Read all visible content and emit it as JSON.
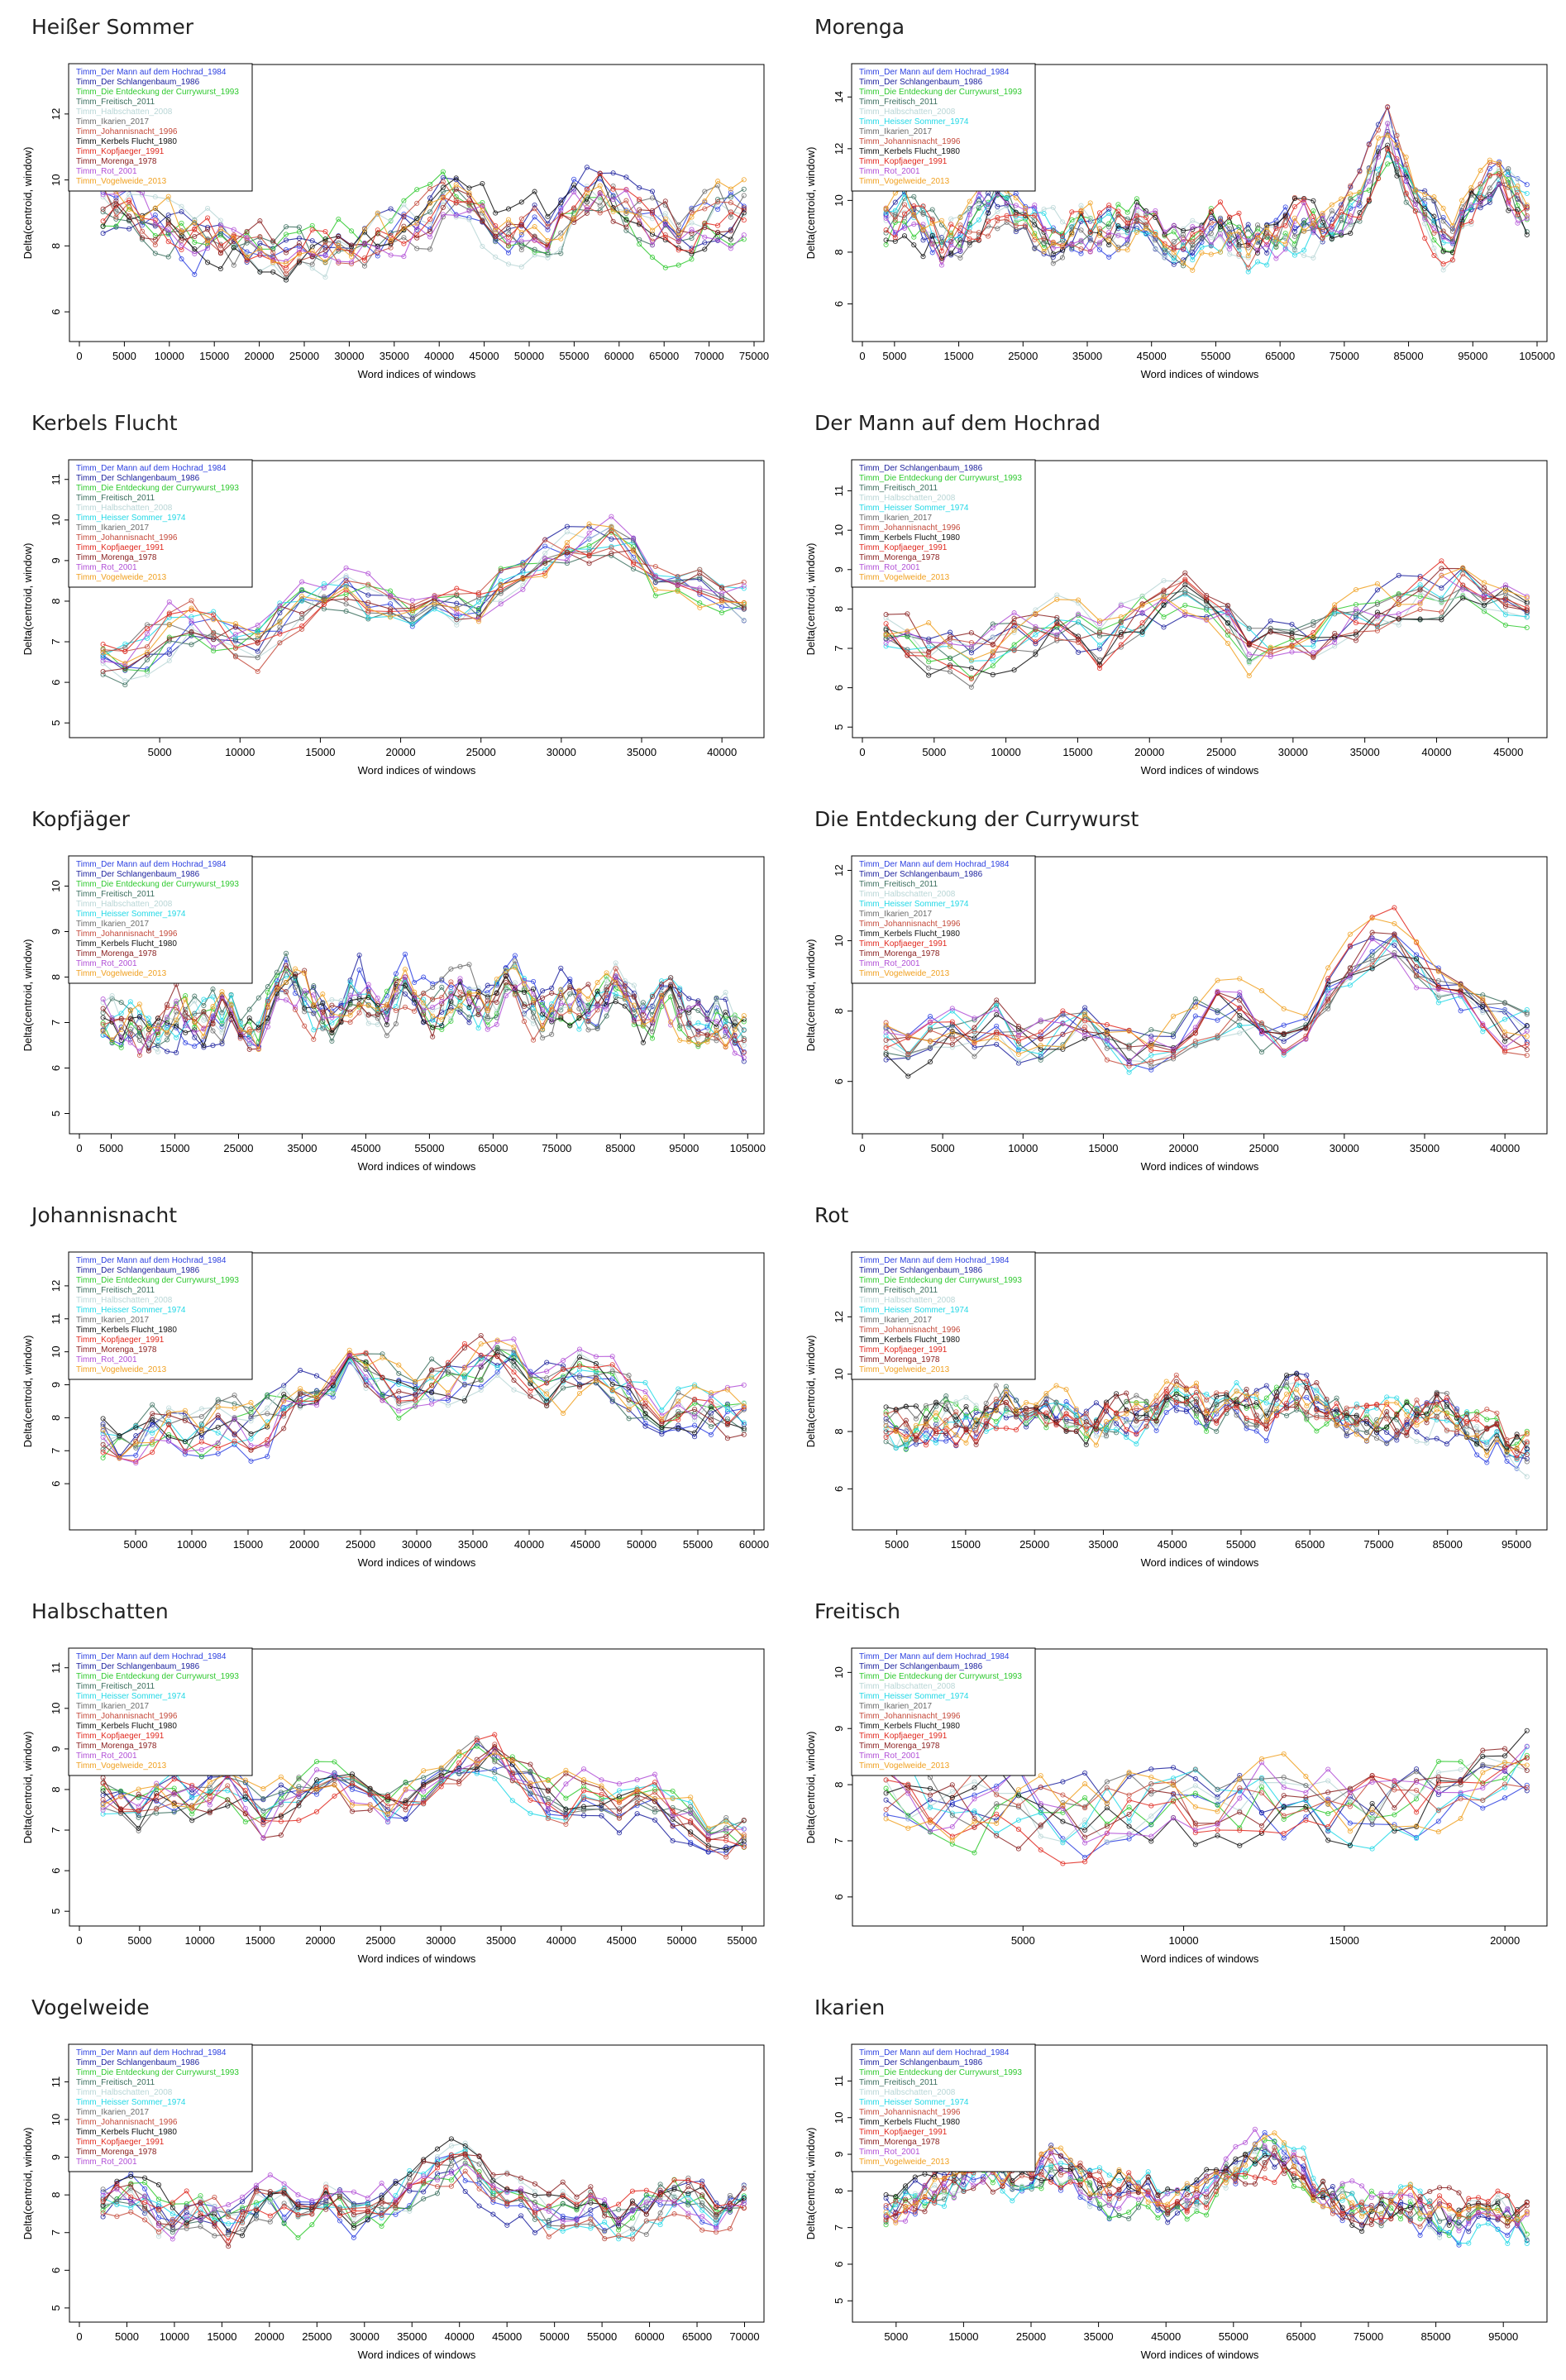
{
  "palette": {
    "Timm_Der Mann auf dem Hochrad_1984": "#2b3fe0",
    "Timm_Der Schlangenbaum_1986": "#1a1f9c",
    "Timm_Die Entdeckung der Currywurst_1993": "#2ec92e",
    "Timm_Freitisch_2011": "#3b6e5e",
    "Timm_Halbschatten_2008": "#b9d6d6",
    "Timm_Heisser Sommer_1974": "#22d8e6",
    "Timm_Ikarien_2017": "#6a6a6a",
    "Timm_Johannisnacht_1996": "#c4493a",
    "Timm_Kerbels Flucht_1980": "#111111",
    "Timm_Kopfjaeger_1991": "#e0281e",
    "Timm_Morenga_1978": "#8a2020",
    "Timm_Rot_2001": "#b14fd6",
    "Timm_Vogelweide_2013": "#f0a020"
  },
  "shared": {
    "ylabel": "Delta(centroid, window)",
    "xlabel": "Word indices of windows"
  },
  "chart_data": [
    {
      "type": "line",
      "title": "Heißer Sommer",
      "xmax": 75000,
      "ylim": [
        5.3,
        13.3
      ],
      "xticks": [
        0,
        5000,
        10000,
        15000,
        20000,
        25000,
        30000,
        35000,
        40000,
        45000,
        50000,
        55000,
        60000,
        65000,
        70000,
        75000
      ],
      "yticks": [
        6,
        8,
        10,
        12
      ],
      "series": [
        "Timm_Der Mann auf dem Hochrad_1984",
        "Timm_Der Schlangenbaum_1986",
        "Timm_Die Entdeckung der Currywurst_1993",
        "Timm_Freitisch_2011",
        "Timm_Halbschatten_2008",
        "Timm_Ikarien_2017",
        "Timm_Johannisnacht_1996",
        "Timm_Kerbels Flucht_1980",
        "Timm_Kopfjaeger_1991",
        "Timm_Morenga_1978",
        "Timm_Rot_2001",
        "Timm_Vogelweide_2013"
      ],
      "mean": [
        9.5,
        9.4,
        9.0,
        8.6,
        8.4,
        8.3,
        8.1,
        8.0,
        8.4,
        8.6,
        8.9,
        9.2,
        9.6,
        9.2,
        8.8,
        8.9,
        9.6,
        10.1,
        9.5,
        8.9,
        9.1,
        9.4,
        9.2
      ],
      "amp": 1.4
    },
    {
      "type": "line",
      "title": "Morenga",
      "xmax": 105000,
      "ylim": [
        4.8,
        15.0
      ],
      "xticks": [
        0,
        5000,
        15000,
        25000,
        35000,
        45000,
        55000,
        65000,
        75000,
        85000,
        95000,
        105000
      ],
      "yticks": [
        6,
        8,
        10,
        12,
        14
      ],
      "series": [
        "Timm_Der Mann auf dem Hochrad_1984",
        "Timm_Der Schlangenbaum_1986",
        "Timm_Die Entdeckung der Currywurst_1993",
        "Timm_Freitisch_2011",
        "Timm_Halbschatten_2008",
        "Timm_Heisser Sommer_1974",
        "Timm_Ikarien_2017",
        "Timm_Johannisnacht_1996",
        "Timm_Kerbels Flucht_1980",
        "Timm_Kopfjaeger_1991",
        "Timm_Rot_2001",
        "Timm_Vogelweide_2013"
      ],
      "mean": [
        9.5,
        9.8,
        8.6,
        9.4,
        10.2,
        9.6,
        8.8,
        9.4,
        9.1,
        9.8,
        9.0,
        8.7,
        9.3,
        8.6,
        8.9,
        9.5,
        9.2,
        10.6,
        13.0,
        10.2,
        8.8,
        10.2,
        11.2,
        9.8
      ],
      "amp": 1.6
    },
    {
      "type": "line",
      "title": "Kerbels Flucht",
      "xmax": 42000,
      "ylim": [
        4.8,
        11.3
      ],
      "xticks": [
        5000,
        10000,
        15000,
        20000,
        25000,
        30000,
        35000,
        40000
      ],
      "yticks": [
        5,
        6,
        7,
        8,
        9,
        10,
        11
      ],
      "series": [
        "Timm_Der Mann auf dem Hochrad_1984",
        "Timm_Der Schlangenbaum_1986",
        "Timm_Die Entdeckung der Currywurst_1993",
        "Timm_Freitisch_2011",
        "Timm_Halbschatten_2008",
        "Timm_Heisser Sommer_1974",
        "Timm_Ikarien_2017",
        "Timm_Johannisnacht_1996",
        "Timm_Kopfjaeger_1991",
        "Timm_Morenga_1978",
        "Timm_Rot_2001",
        "Timm_Vogelweide_2013"
      ],
      "mean": [
        6.8,
        6.6,
        7.4,
        7.6,
        7.2,
        7.0,
        7.8,
        8.1,
        8.4,
        8.0,
        7.6,
        8.2,
        7.8,
        8.6,
        9.1,
        9.4,
        9.6,
        9.9,
        8.8,
        8.5,
        8.4,
        8.2
      ],
      "amp": 1.0
    },
    {
      "type": "line",
      "title": "Der Mann auf dem Hochrad",
      "xmax": 47000,
      "ylim": [
        4.9,
        11.6
      ],
      "xticks": [
        0,
        5000,
        10000,
        15000,
        20000,
        25000,
        30000,
        35000,
        40000,
        45000
      ],
      "yticks": [
        5,
        6,
        7,
        8,
        9,
        10,
        11
      ],
      "series": [
        "Timm_Der Schlangenbaum_1986",
        "Timm_Die Entdeckung der Currywurst_1993",
        "Timm_Freitisch_2011",
        "Timm_Halbschatten_2008",
        "Timm_Heisser Sommer_1974",
        "Timm_Ikarien_2017",
        "Timm_Johannisnacht_1996",
        "Timm_Kerbels Flucht_1980",
        "Timm_Kopfjaeger_1991",
        "Timm_Morenga_1978",
        "Timm_Rot_2001",
        "Timm_Vogelweide_2013"
      ],
      "mean": [
        7.6,
        7.2,
        7.0,
        6.8,
        7.4,
        7.6,
        7.8,
        7.2,
        7.9,
        8.1,
        8.4,
        8.2,
        7.2,
        7.6,
        7.4,
        7.9,
        8.1,
        8.3,
        8.6,
        8.9,
        8.6,
        8.4
      ],
      "amp": 1.1
    },
    {
      "type": "line",
      "title": "Kopfjäger",
      "xmax": 106000,
      "ylim": [
        4.7,
        10.5
      ],
      "xticks": [
        0,
        5000,
        15000,
        25000,
        35000,
        45000,
        55000,
        65000,
        75000,
        85000,
        95000,
        105000
      ],
      "yticks": [
        5,
        6,
        7,
        8,
        9,
        10
      ],
      "series": [
        "Timm_Der Mann auf dem Hochrad_1984",
        "Timm_Der Schlangenbaum_1986",
        "Timm_Die Entdeckung der Currywurst_1993",
        "Timm_Freitisch_2011",
        "Timm_Halbschatten_2008",
        "Timm_Heisser Sommer_1974",
        "Timm_Ikarien_2017",
        "Timm_Johannisnacht_1996",
        "Timm_Kerbels Flucht_1980",
        "Timm_Morenga_1978",
        "Timm_Rot_2001",
        "Timm_Vogelweide_2013"
      ],
      "mean": [
        7.2,
        7.0,
        6.8,
        7.3,
        7.1,
        7.4,
        6.9,
        8.3,
        7.6,
        7.1,
        7.9,
        7.4,
        8.1,
        7.3,
        7.8,
        7.5,
        8.0,
        7.2,
        7.7,
        7.4,
        8.0,
        7.2,
        7.4,
        6.9,
        7.3,
        6.8
      ],
      "amp": 1.0
    },
    {
      "type": "line",
      "title": "Die Entdeckung der Currywurst",
      "xmax": 42000,
      "ylim": [
        4.7,
        12.2
      ],
      "xticks": [
        0,
        5000,
        10000,
        15000,
        20000,
        25000,
        30000,
        35000,
        40000
      ],
      "yticks": [
        6,
        8,
        10,
        12
      ],
      "series": [
        "Timm_Der Mann auf dem Hochrad_1984",
        "Timm_Der Schlangenbaum_1986",
        "Timm_Freitisch_2011",
        "Timm_Halbschatten_2008",
        "Timm_Heisser Sommer_1974",
        "Timm_Ikarien_2017",
        "Timm_Johannisnacht_1996",
        "Timm_Kerbels Flucht_1980",
        "Timm_Kopfjaeger_1991",
        "Timm_Morenga_1978",
        "Timm_Rot_2001",
        "Timm_Vogelweide_2013"
      ],
      "mean": [
        7.2,
        6.9,
        7.6,
        7.1,
        7.8,
        7.0,
        7.4,
        7.9,
        7.2,
        6.8,
        7.1,
        7.8,
        8.3,
        8.0,
        7.2,
        7.5,
        8.8,
        9.6,
        10.2,
        9.4,
        8.6,
        8.1,
        7.6,
        7.4
      ],
      "amp": 1.2
    },
    {
      "type": "line",
      "title": "Johannisnacht",
      "xmax": 60000,
      "ylim": [
        4.8,
        12.8
      ],
      "xticks": [
        5000,
        10000,
        15000,
        20000,
        25000,
        30000,
        35000,
        40000,
        45000,
        50000,
        55000,
        60000
      ],
      "yticks": [
        6,
        7,
        8,
        9,
        10,
        11,
        12
      ],
      "series": [
        "Timm_Der Mann auf dem Hochrad_1984",
        "Timm_Der Schlangenbaum_1986",
        "Timm_Die Entdeckung der Currywurst_1993",
        "Timm_Freitisch_2011",
        "Timm_Halbschatten_2008",
        "Timm_Heisser Sommer_1974",
        "Timm_Ikarien_2017",
        "Timm_Kerbels Flucht_1980",
        "Timm_Kopfjaeger_1991",
        "Timm_Morenga_1978",
        "Timm_Rot_2001",
        "Timm_Vogelweide_2013"
      ],
      "mean": [
        7.4,
        7.1,
        7.8,
        7.4,
        7.9,
        7.6,
        8.4,
        8.9,
        9.6,
        9.2,
        8.7,
        9.1,
        9.5,
        9.8,
        9.3,
        8.9,
        9.4,
        8.7,
        8.2,
        8.6,
        8.3,
        8.1
      ],
      "amp": 1.4
    },
    {
      "type": "line",
      "title": "Rot",
      "xmax": 98000,
      "ylim": [
        4.8,
        14.0
      ],
      "xticks": [
        5000,
        15000,
        25000,
        35000,
        45000,
        55000,
        65000,
        75000,
        85000,
        95000
      ],
      "yticks": [
        6,
        8,
        10,
        12
      ],
      "series": [
        "Timm_Der Mann auf dem Hochrad_1984",
        "Timm_Der Schlangenbaum_1986",
        "Timm_Die Entdeckung der Currywurst_1993",
        "Timm_Freitisch_2011",
        "Timm_Halbschatten_2008",
        "Timm_Heisser Sommer_1974",
        "Timm_Ikarien_2017",
        "Timm_Johannisnacht_1996",
        "Timm_Kerbels Flucht_1980",
        "Timm_Kopfjaeger_1991",
        "Timm_Morenga_1978",
        "Timm_Vogelweide_2013"
      ],
      "mean": [
        8.2,
        7.8,
        8.5,
        8.1,
        8.9,
        8.3,
        8.6,
        8.0,
        8.7,
        8.4,
        9.1,
        8.6,
        9.0,
        8.5,
        9.4,
        8.8,
        8.2,
        8.6,
        8.3,
        8.8,
        8.1,
        7.7,
        7.4
      ],
      "amp": 1.4
    },
    {
      "type": "line",
      "title": "Halbschatten",
      "xmax": 56000,
      "ylim": [
        4.8,
        11.3
      ],
      "xticks": [
        0,
        5000,
        10000,
        15000,
        20000,
        25000,
        30000,
        35000,
        40000,
        45000,
        50000,
        55000
      ],
      "yticks": [
        5,
        6,
        7,
        8,
        9,
        10,
        11
      ],
      "series": [
        "Timm_Der Mann auf dem Hochrad_1984",
        "Timm_Der Schlangenbaum_1986",
        "Timm_Die Entdeckung der Currywurst_1993",
        "Timm_Freitisch_2011",
        "Timm_Heisser Sommer_1974",
        "Timm_Ikarien_2017",
        "Timm_Johannisnacht_1996",
        "Timm_Kerbels Flucht_1980",
        "Timm_Kopfjaeger_1991",
        "Timm_Morenga_1978",
        "Timm_Rot_2001",
        "Timm_Vogelweide_2013"
      ],
      "mean": [
        7.8,
        7.4,
        7.9,
        7.6,
        8.1,
        7.3,
        7.7,
        8.2,
        7.8,
        7.4,
        7.9,
        8.4,
        8.9,
        8.2,
        7.6,
        7.9,
        7.4,
        7.8,
        7.2,
        7.0,
        6.8
      ],
      "amp": 1.0
    },
    {
      "type": "line",
      "title": "Freitisch",
      "xmax": 21000,
      "ylim": [
        5.6,
        10.3
      ],
      "xticks": [
        5000,
        10000,
        15000,
        20000
      ],
      "yticks": [
        6,
        7,
        8,
        9,
        10
      ],
      "series": [
        "Timm_Der Mann auf dem Hochrad_1984",
        "Timm_Der Schlangenbaum_1986",
        "Timm_Die Entdeckung der Currywurst_1993",
        "Timm_Halbschatten_2008",
        "Timm_Heisser Sommer_1974",
        "Timm_Ikarien_2017",
        "Timm_Johannisnacht_1996",
        "Timm_Kerbels Flucht_1980",
        "Timm_Kopfjaeger_1991",
        "Timm_Morenga_1978",
        "Timm_Rot_2001",
        "Timm_Vogelweide_2013"
      ],
      "mean": [
        7.8,
        7.4,
        7.6,
        7.2,
        7.5,
        7.3,
        7.7,
        7.4,
        7.6,
        7.9,
        8.2
      ],
      "amp": 1.2
    },
    {
      "type": "line",
      "title": "Vogelweide",
      "xmax": 71000,
      "ylim": [
        4.8,
        11.8
      ],
      "xticks": [
        0,
        5000,
        10000,
        15000,
        20000,
        25000,
        30000,
        35000,
        40000,
        45000,
        50000,
        55000,
        60000,
        65000,
        70000
      ],
      "yticks": [
        5,
        6,
        7,
        8,
        9,
        10,
        11
      ],
      "series": [
        "Timm_Der Mann auf dem Hochrad_1984",
        "Timm_Der Schlangenbaum_1986",
        "Timm_Die Entdeckung der Currywurst_1993",
        "Timm_Freitisch_2011",
        "Timm_Halbschatten_2008",
        "Timm_Heisser Sommer_1974",
        "Timm_Ikarien_2017",
        "Timm_Johannisnacht_1996",
        "Timm_Kerbels Flucht_1980",
        "Timm_Kopfjaeger_1991",
        "Timm_Morenga_1978",
        "Timm_Rot_2001"
      ],
      "mean": [
        7.6,
        7.9,
        7.2,
        7.5,
        7.0,
        7.8,
        7.4,
        7.9,
        7.3,
        7.6,
        8.2,
        8.8,
        8.0,
        7.7,
        7.3,
        7.8,
        7.1,
        7.5,
        7.9,
        7.4,
        7.8
      ],
      "amp": 1.0
    },
    {
      "type": "line",
      "title": "Ikarien",
      "xmax": 100000,
      "ylim": [
        4.6,
        11.8
      ],
      "xticks": [
        5000,
        15000,
        25000,
        35000,
        45000,
        55000,
        65000,
        75000,
        85000,
        95000
      ],
      "yticks": [
        5,
        6,
        7,
        8,
        9,
        10,
        11
      ],
      "series": [
        "Timm_Der Mann auf dem Hochrad_1984",
        "Timm_Der Schlangenbaum_1986",
        "Timm_Die Entdeckung der Currywurst_1993",
        "Timm_Freitisch_2011",
        "Timm_Halbschatten_2008",
        "Timm_Heisser Sommer_1974",
        "Timm_Johannisnacht_1996",
        "Timm_Kerbels Flucht_1980",
        "Timm_Kopfjaeger_1991",
        "Timm_Morenga_1978",
        "Timm_Rot_2001",
        "Timm_Vogelweide_2013"
      ],
      "mean": [
        7.2,
        7.6,
        8.0,
        8.6,
        8.2,
        8.7,
        8.1,
        7.6,
        8.0,
        7.4,
        7.8,
        8.4,
        8.9,
        8.3,
        7.6,
        7.3,
        7.5,
        7.2,
        7.0,
        7.3,
        6.9
      ],
      "amp": 1.0
    }
  ]
}
